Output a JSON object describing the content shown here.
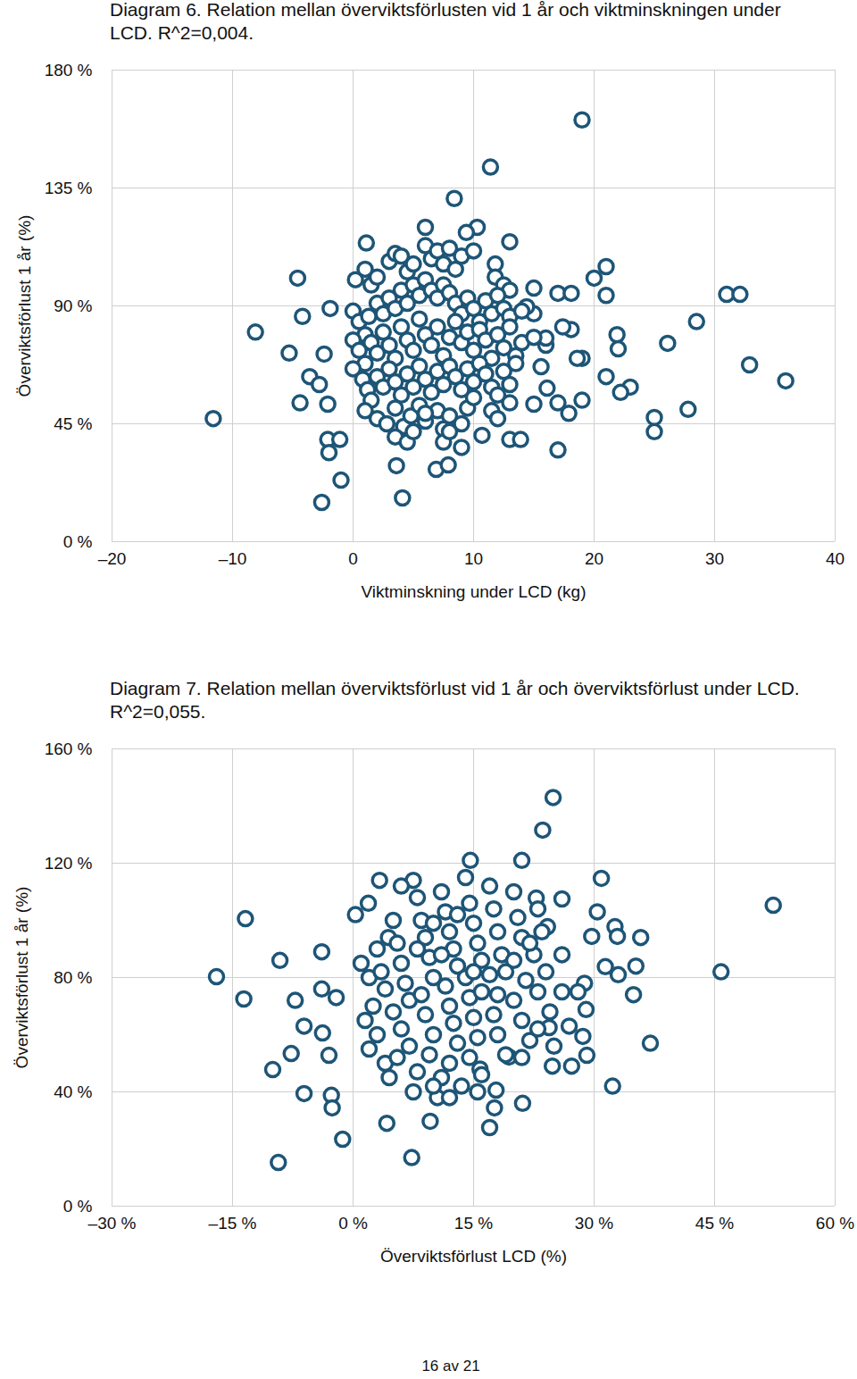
{
  "chart_data": [
    {
      "type": "scatter",
      "title": "Diagram 6. Relation mellan överviktsförlusten vid 1 år och viktminskningen under LCD. R^2=0,004.",
      "x_label": "Viktminskning under LCD (kg)",
      "y_label": "Överviktsförlust 1 år (%)",
      "color": "#1d5577",
      "marker": "circle",
      "grid": true,
      "xlim": [
        -20,
        40
      ],
      "ylim": [
        0,
        180
      ],
      "xticks": [
        {
          "value": -20,
          "label": "–20"
        },
        {
          "value": -10,
          "label": "–10"
        },
        0,
        10,
        20,
        30,
        40
      ],
      "yticks": [
        {
          "value": 0,
          "label": "0 %"
        },
        {
          "value": 45,
          "label": "45 %"
        },
        {
          "value": 90,
          "label": "90 %"
        },
        {
          "value": 135,
          "label": "135 %"
        },
        {
          "value": 180,
          "label": "180 %"
        }
      ],
      "x": [
        -11.6,
        -8.1,
        -4.6,
        -5.3,
        -4.2,
        -4.4,
        -3.6,
        -2.8,
        -2.6,
        -2.1,
        -2,
        -1.9,
        -1.1,
        -1,
        -2.1,
        -2.4,
        19,
        11.4,
        8.4,
        6,
        10.3,
        9.4,
        13,
        1.1,
        4.1,
        3.6,
        6.9,
        7.9,
        9,
        10.7,
        13,
        13.9,
        17,
        15,
        17,
        18.1,
        20,
        21,
        21,
        18.1,
        17.4,
        21.9,
        22,
        19,
        18.6,
        21,
        23,
        22.2,
        19,
        17,
        17.9,
        25,
        25,
        27.8,
        26.1,
        28.5,
        31,
        32.1,
        32.9,
        35.9,
        15,
        16.1,
        15.6,
        16,
        16,
        15,
        14.4,
        0.2,
        1,
        1.5,
        2,
        3,
        3.5,
        4,
        4.5,
        5,
        6,
        6.5,
        7,
        7.5,
        8,
        8.5,
        9,
        10,
        11.8,
        11.8,
        12.5,
        13,
        0,
        0.5,
        1,
        1.3,
        2,
        2.5,
        3,
        3.5,
        4,
        4.5,
        5,
        5.5,
        6,
        6.5,
        7,
        7.5,
        8,
        8.5,
        9,
        9.5,
        10,
        10.5,
        11,
        11.5,
        12,
        12.5,
        13,
        14,
        0,
        0.5,
        1,
        1.5,
        2,
        2.5,
        3,
        3.5,
        4,
        4.5,
        5,
        5.5,
        6,
        6.5,
        7,
        7.5,
        8,
        8.5,
        9,
        9.5,
        10,
        10.5,
        11,
        11.5,
        12,
        12.5,
        13,
        13.5,
        14,
        15,
        0,
        0.8,
        1.2,
        1.5,
        2,
        2.5,
        3,
        3.5,
        4,
        4.5,
        5,
        5.5,
        6,
        6.5,
        7,
        7.5,
        8,
        8.5,
        9,
        9.5,
        10,
        10.5,
        11,
        11.5,
        12,
        12.5,
        13,
        13.5,
        1,
        2,
        2.8,
        3.5,
        4.2,
        4.8,
        5.5,
        6,
        7,
        7.5,
        8,
        9,
        9.5,
        10,
        11.5,
        12,
        13,
        3.5,
        4.5,
        5,
        7.5,
        8,
        6
      ],
      "values": [
        47,
        80,
        100.6,
        72,
        86,
        53,
        63,
        60,
        15,
        39,
        34,
        89,
        39,
        23.5,
        52.5,
        71.6,
        161,
        143,
        131,
        120,
        120,
        118,
        114.5,
        114,
        16.7,
        29,
        27.6,
        29.3,
        36,
        40.6,
        39,
        39,
        35,
        96.8,
        94.8,
        94.8,
        100.6,
        105,
        94,
        81,
        82,
        79,
        73.6,
        70,
        70,
        63,
        59,
        57,
        54,
        53,
        49,
        47.4,
        42,
        50.5,
        75.7,
        84,
        94.4,
        94.4,
        67.5,
        61.4,
        52.5,
        58.6,
        66.8,
        75,
        77.7,
        87,
        89.7,
        100,
        104,
        98,
        101,
        107,
        110,
        109,
        103,
        106,
        113,
        108,
        111,
        106,
        112,
        104,
        109,
        111,
        106,
        101,
        98,
        96,
        88,
        84,
        79,
        86,
        91,
        87,
        93,
        89,
        96,
        91,
        98,
        94,
        100,
        96,
        93,
        98,
        95,
        91,
        87,
        93,
        89,
        84,
        92,
        87,
        94,
        89,
        86,
        88,
        77,
        73,
        68,
        76,
        72,
        80,
        75,
        70,
        82,
        77,
        73,
        85,
        79,
        75,
        82,
        71,
        78,
        84,
        76,
        80,
        73,
        81,
        77,
        70,
        79,
        74,
        82,
        71,
        76,
        78,
        66,
        62,
        58,
        54,
        63,
        59,
        66,
        61,
        56,
        64,
        59,
        67,
        62,
        57,
        65,
        60,
        67,
        63,
        58,
        66,
        61,
        68,
        64,
        59,
        56,
        65,
        60,
        68,
        50,
        47,
        45,
        51,
        44,
        48,
        52,
        46,
        50,
        43,
        48,
        45,
        51,
        55,
        50,
        47,
        53,
        40,
        38,
        42,
        38,
        42,
        49
      ]
    },
    {
      "type": "scatter",
      "title": "Diagram 7. Relation mellan överviktsförlust vid 1 år och överviktsförlust under LCD. R^2=0,055.",
      "x_label": "Överviktsförlust LCD (%)",
      "y_label": "Överviktsförlust 1 år (%)",
      "color": "#1d5577",
      "marker": "circle",
      "grid": true,
      "xlim": [
        -30,
        60
      ],
      "ylim": [
        0,
        160
      ],
      "xticks": [
        {
          "value": -30,
          "label": "–30 %"
        },
        {
          "value": -15,
          "label": "–15 %"
        },
        {
          "value": 0,
          "label": "0 %"
        },
        {
          "value": 15,
          "label": "15 %"
        },
        {
          "value": 30,
          "label": "30 %"
        },
        {
          "value": 45,
          "label": "45 %"
        },
        {
          "value": 60,
          "label": "60 %"
        }
      ],
      "yticks": [
        {
          "value": 0,
          "label": "0 %"
        },
        {
          "value": 40,
          "label": "40 %"
        },
        {
          "value": 80,
          "label": "80 %"
        },
        {
          "value": 120,
          "label": "120 %"
        },
        {
          "value": 160,
          "label": "160 %"
        }
      ],
      "x": [
        -17,
        -13.4,
        -13.6,
        -9.1,
        -10,
        -9.3,
        -7.7,
        -7.2,
        -6.1,
        -6.1,
        -3.9,
        -3.9,
        -3.8,
        -3,
        -2.7,
        -2.6,
        -2.1,
        -1.3,
        4.2,
        7.3,
        9.6,
        17,
        21.1,
        24.9,
        23.6,
        21,
        14.6,
        32.3,
        37,
        52.3,
        45.8,
        30.9,
        30.4,
        32.6,
        35.8,
        32.9,
        35.2,
        33,
        34.9,
        31.4,
        28.8,
        28,
        29,
        29.1,
        28.6,
        26.9,
        27.2,
        24.8,
        24.4,
        26,
        22.8,
        24.2,
        29.7,
        0.3,
        3.3,
        1.9,
        7.5,
        15.5,
        17.8,
        17.6,
        19.4,
        15.8,
        4.4,
        1,
        2,
        3,
        2.5,
        1.5,
        3,
        2,
        4,
        4.5,
        5,
        5.5,
        6,
        6.5,
        7,
        5,
        6,
        7,
        5.5,
        8,
        7.5,
        8,
        8.5,
        9,
        9.5,
        10,
        8.5,
        9,
        10,
        9.5,
        11,
        10.5,
        11,
        11.5,
        12,
        12.5,
        13,
        11.5,
        12,
        12.5,
        13,
        12,
        13.5,
        14,
        14.5,
        15,
        15.5,
        16,
        14,
        14.5,
        15,
        15.5,
        14.5,
        16,
        17,
        17.5,
        18,
        18.5,
        17,
        18,
        17.5,
        18,
        19,
        20,
        20.5,
        21,
        20,
        21.5,
        20,
        21,
        22,
        21,
        23,
        23.5,
        22.5,
        24,
        23,
        24.5,
        23,
        25,
        6,
        4,
        3.5,
        10,
        16,
        13,
        19,
        8,
        11,
        15,
        22,
        26,
        26,
        12,
        10
      ],
      "values": [
        80.3,
        100.6,
        72.5,
        86,
        47.8,
        15.3,
        53.4,
        72,
        63,
        39.4,
        89,
        76,
        60.6,
        52.8,
        38.8,
        34.4,
        73,
        23.4,
        29,
        17,
        29.7,
        27.5,
        36,
        143,
        131.6,
        121,
        121,
        42,
        57,
        105.3,
        82,
        114.7,
        103,
        97.8,
        94,
        94.4,
        84,
        81,
        74,
        83.8,
        78,
        75,
        68.8,
        52.8,
        59.4,
        63,
        49,
        49,
        62.5,
        107.5,
        107.8,
        97.8,
        94.4,
        102,
        114,
        106,
        114,
        40,
        40.6,
        34.4,
        52.2,
        48,
        94,
        85,
        80,
        90,
        70,
        65,
        60,
        55,
        50,
        45,
        100,
        92,
        85,
        78,
        72,
        68,
        62,
        56,
        52,
        47,
        40,
        108,
        100,
        94,
        87,
        80,
        74,
        67,
        60,
        53,
        45,
        38,
        110,
        103,
        96,
        90,
        84,
        77,
        70,
        64,
        57,
        50,
        42,
        115,
        106,
        99,
        92,
        86,
        80,
        73,
        66,
        59,
        52,
        46,
        112,
        104,
        96,
        88,
        81,
        74,
        67,
        60,
        53,
        110,
        101,
        94,
        86,
        79,
        72,
        65,
        58,
        52,
        104,
        96,
        88,
        82,
        75,
        68,
        62,
        56,
        112,
        76,
        82,
        99,
        75,
        102,
        82,
        90,
        88,
        82,
        92,
        88,
        75,
        38,
        42
      ]
    }
  ],
  "footer": "16 av 21"
}
